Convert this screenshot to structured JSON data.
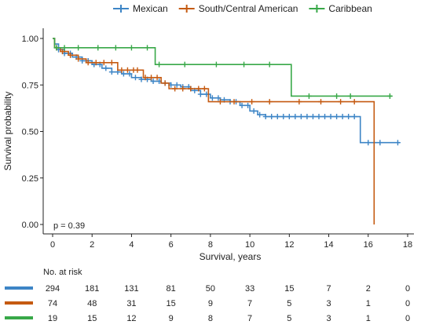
{
  "chart_data": {
    "type": "line",
    "subtype": "kaplan-meier",
    "title": "",
    "xlabel": "Survival, years",
    "ylabel": "Survival probability",
    "xlim": [
      0,
      18
    ],
    "ylim": [
      0,
      1
    ],
    "xticks": [
      0,
      2,
      4,
      6,
      8,
      10,
      12,
      14,
      16,
      18
    ],
    "yticks": [
      "0.00",
      "0.25",
      "0.50",
      "0.75",
      "1.00"
    ],
    "grid": false,
    "legend_position": "top",
    "pvalue_text": "p = 0.39",
    "series": [
      {
        "name": "Mexican",
        "color": "#3d85c6",
        "steps": [
          [
            0,
            1.0
          ],
          [
            0.1,
            0.97
          ],
          [
            0.3,
            0.94
          ],
          [
            0.6,
            0.92
          ],
          [
            1.0,
            0.9
          ],
          [
            1.5,
            0.88
          ],
          [
            2.0,
            0.86
          ],
          [
            2.5,
            0.84
          ],
          [
            3.0,
            0.82
          ],
          [
            3.5,
            0.81
          ],
          [
            4.0,
            0.79
          ],
          [
            4.5,
            0.78
          ],
          [
            5.0,
            0.77
          ],
          [
            5.5,
            0.76
          ],
          [
            6.0,
            0.75
          ],
          [
            6.5,
            0.74
          ],
          [
            7.0,
            0.72
          ],
          [
            7.5,
            0.7
          ],
          [
            8.0,
            0.68
          ],
          [
            8.5,
            0.67
          ],
          [
            9.0,
            0.66
          ],
          [
            9.5,
            0.64
          ],
          [
            10.0,
            0.61
          ],
          [
            10.4,
            0.59
          ],
          [
            10.8,
            0.58
          ],
          [
            15.6,
            0.44
          ],
          [
            17.6,
            0.44
          ]
        ],
        "censor_times": [
          0.3,
          0.6,
          0.9,
          1.2,
          1.5,
          1.8,
          2.1,
          2.4,
          2.7,
          3.0,
          3.3,
          3.6,
          3.9,
          4.2,
          4.5,
          4.8,
          5.1,
          5.4,
          5.7,
          6.0,
          6.3,
          6.6,
          6.9,
          7.2,
          7.5,
          7.8,
          8.1,
          8.4,
          8.7,
          9.0,
          9.3,
          9.6,
          9.9,
          10.2,
          10.5,
          10.8,
          11.1,
          11.4,
          11.7,
          12.0,
          12.3,
          12.6,
          12.9,
          13.2,
          13.5,
          13.8,
          14.1,
          14.4,
          14.7,
          15.0,
          15.3,
          16.0,
          16.6,
          17.5
        ]
      },
      {
        "name": "South/Central American",
        "color": "#c55a11",
        "steps": [
          [
            0,
            1.0
          ],
          [
            0.1,
            0.95
          ],
          [
            0.4,
            0.93
          ],
          [
            0.8,
            0.91
          ],
          [
            1.3,
            0.89
          ],
          [
            1.7,
            0.87
          ],
          [
            3.3,
            0.83
          ],
          [
            4.6,
            0.79
          ],
          [
            5.5,
            0.76
          ],
          [
            5.9,
            0.73
          ],
          [
            7.9,
            0.66
          ],
          [
            16.3,
            0.0
          ]
        ],
        "censor_times": [
          0.2,
          0.5,
          0.9,
          1.3,
          1.8,
          2.2,
          2.6,
          3.0,
          3.5,
          3.8,
          4.1,
          4.3,
          4.7,
          5.0,
          5.3,
          5.7,
          6.2,
          6.6,
          7.0,
          7.4,
          7.7,
          8.5,
          9.2,
          10.1,
          11.0,
          12.5,
          13.6,
          14.6,
          15.3
        ]
      },
      {
        "name": "Caribbean",
        "color": "#38a848",
        "steps": [
          [
            0,
            1.0
          ],
          [
            0.1,
            0.95
          ],
          [
            5.2,
            0.86
          ],
          [
            12.1,
            0.69
          ],
          [
            17.2,
            0.69
          ]
        ],
        "censor_times": [
          0.2,
          0.6,
          1.3,
          2.3,
          3.2,
          4.0,
          4.8,
          5.4,
          6.7,
          8.3,
          9.7,
          11.0,
          13.0,
          14.4,
          15.1,
          17.1
        ]
      }
    ],
    "risk_table": {
      "title": "No. at risk",
      "times": [
        0,
        2,
        4,
        6,
        8,
        10,
        12,
        14,
        16,
        18
      ],
      "rows": [
        {
          "series": "Mexican",
          "color": "#3d85c6",
          "counts": [
            294,
            181,
            131,
            81,
            50,
            33,
            15,
            7,
            2,
            0
          ]
        },
        {
          "series": "South/Central American",
          "color": "#c55a11",
          "counts": [
            74,
            48,
            31,
            15,
            9,
            7,
            5,
            3,
            1,
            0
          ]
        },
        {
          "series": "Caribbean",
          "color": "#38a848",
          "counts": [
            19,
            15,
            12,
            9,
            8,
            7,
            5,
            3,
            1,
            0
          ]
        }
      ]
    }
  }
}
